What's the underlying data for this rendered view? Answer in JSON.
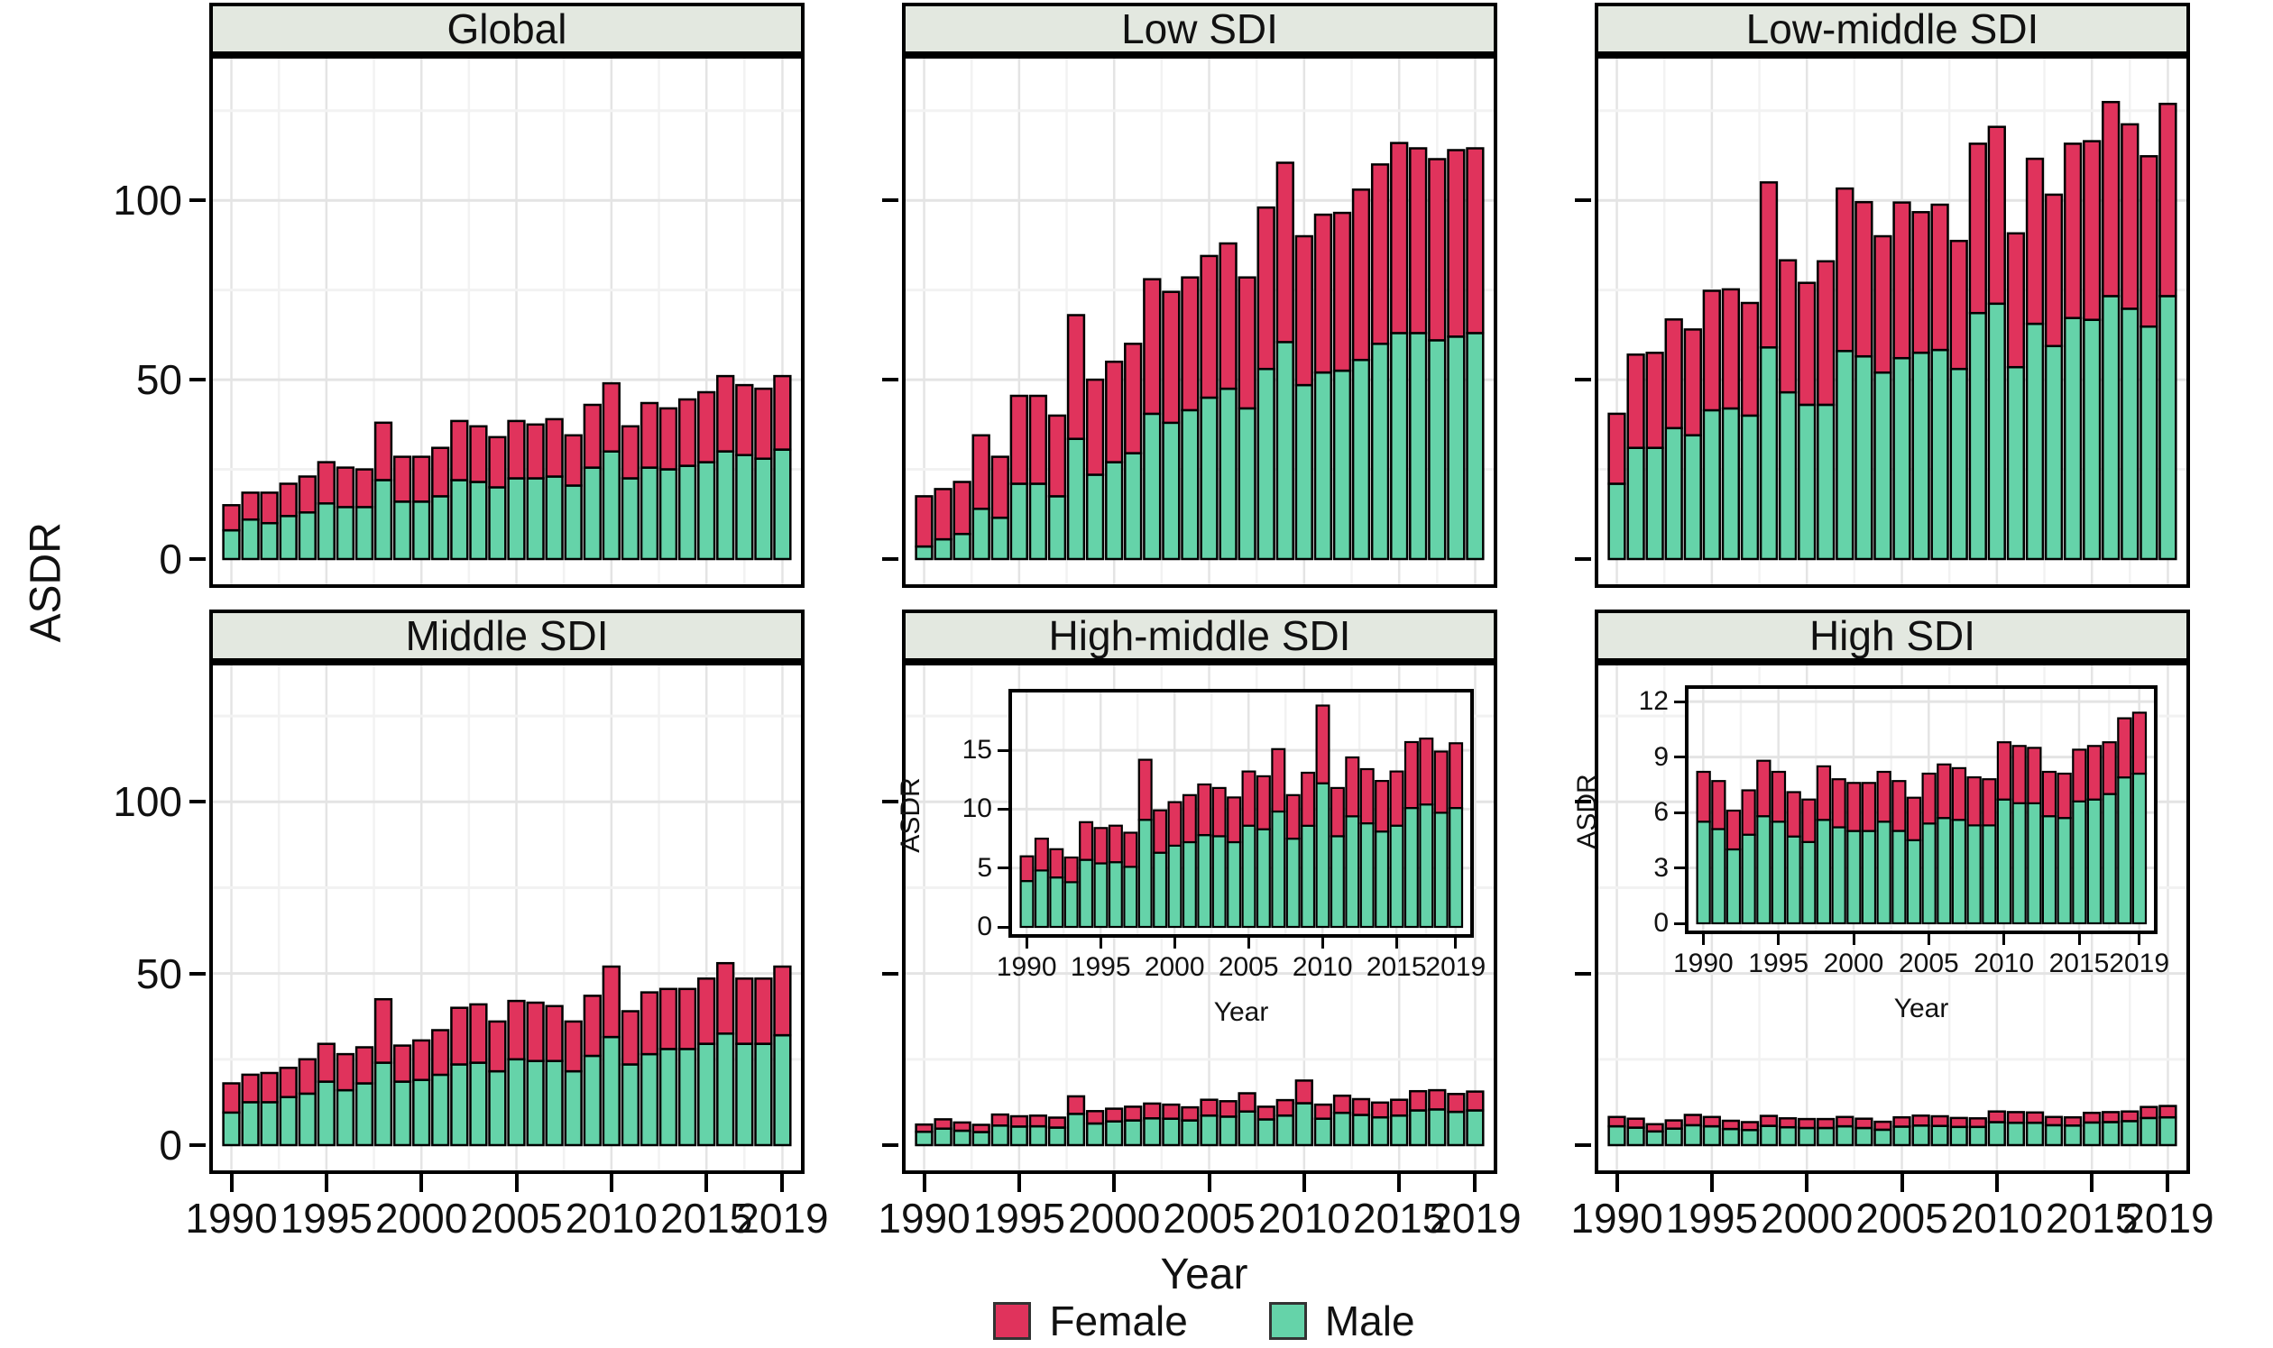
{
  "legend": {
    "items": [
      {
        "label": "Female",
        "color": "#E0335C"
      },
      {
        "label": "Male",
        "color": "#65D3A9"
      }
    ]
  },
  "colors": {
    "female": "#E0335C",
    "male": "#65D3A9",
    "bar_outline": "#000000",
    "strip_bg": "#E3E8E0",
    "panel_border": "#000000",
    "grid_major": "#E4E4E4",
    "grid_minor": "#F2F2F2"
  },
  "chart_data": {
    "type": "bar",
    "stacked": true,
    "y_axis_label": "ASDR",
    "x_axis_label": "Year",
    "categories": [
      1990,
      1991,
      1992,
      1993,
      1994,
      1995,
      1996,
      1997,
      1998,
      1999,
      2000,
      2001,
      2002,
      2003,
      2004,
      2005,
      2006,
      2007,
      2008,
      2009,
      2010,
      2011,
      2012,
      2013,
      2014,
      2015,
      2016,
      2017,
      2018,
      2019
    ],
    "x_tick_labels": [
      "1990",
      "1995",
      "2000",
      "2005",
      "2010",
      "2015",
      "2019"
    ],
    "x_tick_indices": [
      0,
      5,
      10,
      15,
      20,
      25,
      29
    ],
    "main_yticks": [
      0,
      50,
      100
    ],
    "main_ylim": [
      0,
      135
    ],
    "grid": true,
    "legend_position": "bottom",
    "panels": [
      {
        "title": "Global",
        "series": [
          {
            "name": "Female",
            "values": [
              7,
              7.5,
              8.5,
              9,
              10,
              11.5,
              11,
              10.5,
              16,
              12.5,
              12.5,
              13.5,
              16.5,
              15.5,
              14,
              16,
              15,
              16,
              14,
              17.5,
              19,
              14.5,
              18,
              17,
              18.5,
              19.5,
              21,
              19.5,
              19.5,
              20.5
            ]
          },
          {
            "name": "Male",
            "values": [
              8,
              11,
              10,
              12,
              13,
              15.5,
              14.5,
              14.5,
              22,
              16,
              16,
              17.5,
              22,
              21.5,
              20,
              22.5,
              22.5,
              23,
              20.5,
              25.5,
              30,
              22.5,
              25.5,
              25,
              26,
              27,
              30,
              29,
              28,
              30.5
            ]
          }
        ]
      },
      {
        "title": "Low SDI",
        "series": [
          {
            "name": "Female",
            "values": [
              14,
              14,
              14.5,
              20.5,
              17,
              24.5,
              24.5,
              22.5,
              34.5,
              26.5,
              28,
              30.5,
              37.5,
              36.5,
              37,
              39.5,
              40.5,
              36.5,
              45,
              50,
              41.5,
              44,
              44,
              47.5,
              50,
              53,
              51.5,
              50.5,
              52,
              51.5
            ]
          },
          {
            "name": "Male",
            "values": [
              3.5,
              5.5,
              7,
              14,
              11.5,
              21,
              21,
              17.5,
              33.5,
              23.5,
              27,
              29.5,
              40.5,
              38,
              41.5,
              45,
              47.5,
              42,
              53,
              60.5,
              48.5,
              52,
              52.5,
              55.5,
              60,
              63,
              63,
              61,
              62,
              63
            ]
          }
        ]
      },
      {
        "title": "Low-middle SDI",
        "series": [
          {
            "name": "Female",
            "values": [
              19.5,
              26,
              26.5,
              30.3,
              29.5,
              33.3,
              33.2,
              31.4,
              46,
              36.8,
              34,
              40,
              45.3,
              43,
              38,
              43.4,
              39.2,
              40.5,
              35.7,
              47.2,
              49.3,
              37.3,
              46,
              42.2,
              48.6,
              49.8,
              54.1,
              51.4,
              47.5,
              53.6
            ]
          },
          {
            "name": "Male",
            "values": [
              21,
              31,
              31,
              36.5,
              34.5,
              41.5,
              42,
              40,
              59,
              46.5,
              43,
              43,
              58,
              56.5,
              52,
              56,
              57.5,
              58.3,
              53,
              68.6,
              71.2,
              53.5,
              65.6,
              59.4,
              67.2,
              66.7,
              73.3,
              69.8,
              64.8,
              73.3
            ]
          }
        ]
      },
      {
        "title": "Middle SDI",
        "series": [
          {
            "name": "Female",
            "values": [
              8.5,
              8,
              8.5,
              8.5,
              10,
              11,
              10.5,
              10.5,
              18.5,
              10.5,
              11.5,
              13,
              16.5,
              17,
              14.5,
              17,
              17,
              16,
              14.5,
              17.5,
              20.5,
              15.5,
              18,
              17.5,
              17.5,
              19,
              20.5,
              19,
              19,
              20
            ]
          },
          {
            "name": "Male",
            "values": [
              9.5,
              12.5,
              12.5,
              14,
              15,
              18.5,
              16,
              18,
              24,
              18.5,
              19,
              20.5,
              23.5,
              24,
              21.5,
              25,
              24.5,
              24.5,
              21.5,
              26,
              31.5,
              23.5,
              26.5,
              28,
              28,
              29.5,
              32.5,
              29.5,
              29.5,
              32
            ]
          }
        ]
      },
      {
        "title": "High-middle SDI",
        "series": [
          {
            "name": "Female",
            "values": [
              2.1,
              2.7,
              2.4,
              2.1,
              3.2,
              3,
              3.1,
              2.9,
              5.1,
              3.6,
              3.7,
              4,
              4.3,
              4.1,
              3.8,
              4.6,
              4.5,
              5.3,
              3.7,
              4.5,
              6.6,
              4.1,
              5,
              4.6,
              4.3,
              4.6,
              5.6,
              5.6,
              5.2,
              5.5
            ]
          },
          {
            "name": "Male",
            "values": [
              3.9,
              4.8,
              4.2,
              3.8,
              5.7,
              5.4,
              5.5,
              5.1,
              9.1,
              6.3,
              6.9,
              7.2,
              7.8,
              7.7,
              7.2,
              8.6,
              8.3,
              9.8,
              7.5,
              8.6,
              12.2,
              7.7,
              9.4,
              8.8,
              8.1,
              8.6,
              10.1,
              10.4,
              9.7,
              10.1
            ]
          }
        ],
        "inset": {
          "y_axis_label": "ASDR",
          "x_axis_label": "Year",
          "yticks": [
            0,
            5,
            10,
            15
          ],
          "ylim": [
            0,
            19.3
          ],
          "x_tick_labels": [
            "1990",
            "1995",
            "2000",
            "2005",
            "2010",
            "2015",
            "2019"
          ]
        }
      },
      {
        "title": "High SDI",
        "series": [
          {
            "name": "Female",
            "values": [
              2.7,
              2.6,
              2.1,
              2.4,
              3,
              2.7,
              2.4,
              2.3,
              2.9,
              2.6,
              2.6,
              2.6,
              2.7,
              2.7,
              2.3,
              2.7,
              2.9,
              2.8,
              2.6,
              2.5,
              3.1,
              3.1,
              3,
              2.4,
              2.4,
              2.8,
              2.9,
              2.8,
              3.2,
              3.3
            ]
          },
          {
            "name": "Male",
            "values": [
              5.5,
              5.1,
              4,
              4.8,
              5.8,
              5.5,
              4.7,
              4.4,
              5.6,
              5.2,
              5,
              5,
              5.5,
              5,
              4.5,
              5.4,
              5.7,
              5.6,
              5.3,
              5.3,
              6.7,
              6.5,
              6.5,
              5.8,
              5.7,
              6.6,
              6.7,
              7,
              7.9,
              8.1
            ]
          }
        ],
        "inset": {
          "y_axis_label": "ASDR",
          "x_axis_label": "Year",
          "yticks": [
            0,
            3,
            6,
            9,
            12
          ],
          "ylim": [
            0,
            12.3
          ],
          "x_tick_labels": [
            "1990",
            "1995",
            "2000",
            "2005",
            "2010",
            "2015",
            "2019"
          ]
        }
      }
    ]
  }
}
